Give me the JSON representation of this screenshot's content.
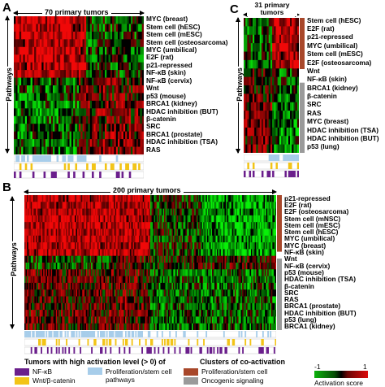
{
  "panels": {
    "A": {
      "letter": "A",
      "tumor_label": "70 primary tumors",
      "axis_label": "Pathways",
      "num_tumors": 70,
      "pathways": [
        "MYC (breast)",
        "Stem cell (hESC)",
        "Stem cell (mESC)",
        "Stem cell (osteosarcoma)",
        "MYC (umbilical)",
        "E2F (rat)",
        "p21-repressed",
        "NF-κB (skin)",
        "NF-κB (cervix)",
        "Wnt",
        "p53 (mouse)",
        "BRCA1 (kidney)",
        "HDAC inhibition (BUT)",
        "β-catenin",
        "SRC",
        "BRCA1 (prostate)",
        "HDAC inhibition (TSA)",
        "RAS"
      ]
    },
    "B": {
      "letter": "B",
      "tumor_label": "200 primary tumors",
      "axis_label": "Pathways",
      "num_tumors": 200,
      "pathways": [
        "p21-repressed",
        "E2F (rat)",
        "E2F (osteosarcoma)",
        "Stem cell (mNSC)",
        "Stem cell (mESC)",
        "Stem cell (hESC)",
        "MYC (umbilical)",
        "MYC (breast)",
        "NF-κB (skin)",
        "Wnt",
        "NF-κB (cervix)",
        "p53 (mouse)",
        "HDAC inhibition (TSA)",
        "β-catenin",
        "SRC",
        "RAS",
        "BRCA1 (prostate)",
        "HDAC inhibition (BUT)",
        "p53 (lung)",
        "BRCA1 (kidney)"
      ]
    },
    "C": {
      "letter": "C",
      "tumor_label": "31 primary tumors",
      "axis_label": "Pathways",
      "num_tumors": 31,
      "pathways": [
        "Stem cell (hESC)",
        "E2F (rat)",
        "p21-repressed",
        "MYC (umbilical)",
        "Stem cell (mESC)",
        "E2F (osteosarcoma)",
        "Wnt",
        "NF-κB (skin)",
        "BRCA1 (kidney)",
        "β-catenin",
        "SRC",
        "RAS",
        "MYC (breast)",
        "HDAC inhibition (TSA)",
        "HDAC inhibition (BUT)",
        "p53 (lung)"
      ]
    }
  },
  "legend": {
    "high_activation_title": "Tumors with high activation level (> 0) of",
    "clusters_title": "Clusters of co-activation",
    "items": {
      "nfkb": "NF-κB",
      "wnt": "Wnt/β-catenin",
      "prolif_pathways": "Proliferation/stem cell pathways",
      "prolif_cluster": "Proliferation/stem cell",
      "oncogenic": "Oncogenic signaling"
    },
    "colorbar_min": "-1",
    "colorbar_max": "1",
    "colorbar_label": "Activation score"
  },
  "colors": {
    "activation_high": "#dd0a0a",
    "activation_zero": "#000000",
    "activation_low": "#0bb20b",
    "nfkb": "#6b1f8c",
    "wnt": "#f2c417",
    "proliferation_stem": "#a7cdea",
    "cluster_proliferation": "#a8472a",
    "cluster_oncogenic": "#9a9a9a"
  }
}
